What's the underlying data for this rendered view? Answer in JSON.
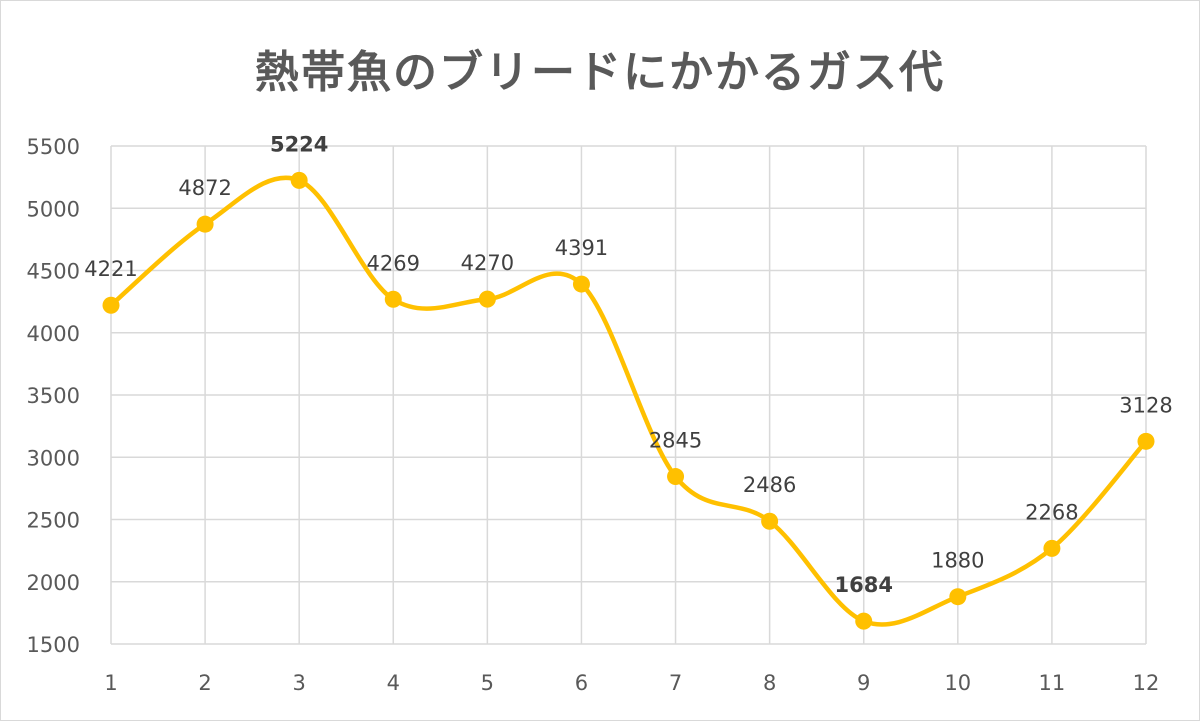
{
  "chart_data": {
    "type": "line",
    "title": "熱帯魚のブリードにかかるガス代",
    "xlabel": "",
    "ylabel": "",
    "categories": [
      "1",
      "2",
      "3",
      "4",
      "5",
      "6",
      "7",
      "8",
      "9",
      "10",
      "11",
      "12"
    ],
    "series": [
      {
        "values": [
          4221,
          4872,
          5224,
          4269,
          4270,
          4391,
          2845,
          2486,
          1684,
          1880,
          2268,
          3128
        ]
      }
    ],
    "yticks": [
      "1500",
      "2000",
      "2500",
      "3000",
      "3500",
      "4000",
      "4500",
      "5000",
      "5500"
    ],
    "ylim": [
      1500,
      5500
    ],
    "smoothed": true,
    "grid": "vertical-and-horizontal",
    "legend": "none",
    "max_index": 2,
    "min_index": 8,
    "colors": {
      "line": "#FFC000",
      "marker": "#FFC000",
      "grid": "#d9d9d9",
      "max_label": "#FF0000",
      "min_label": "#0070C0",
      "label": "#404040",
      "title": "#595959"
    }
  }
}
